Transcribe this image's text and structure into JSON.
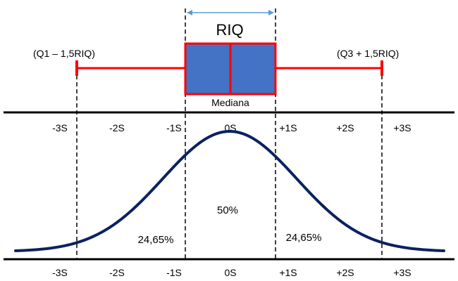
{
  "boxplot": {
    "riq_label": "RIQ",
    "median_label": "Mediana",
    "lower_whisker_label": "(Q1 – 1,5RIQ)",
    "upper_whisker_label": "(Q3 + 1,5RIQ)"
  },
  "axis_ticks": [
    "-3S",
    "-2S",
    "-1S",
    "0S",
    "+1S",
    "+2S",
    "+3S"
  ],
  "areas": {
    "center": "50%",
    "left_tail": "24,65%",
    "right_tail": "24,65%"
  },
  "colors": {
    "box_fill": "#4472C4",
    "box_edge": "#FF0000",
    "whisker": "#FF0000",
    "curve": "#0B2160",
    "arrow": "#5B9BD5",
    "axis": "#000000"
  }
}
